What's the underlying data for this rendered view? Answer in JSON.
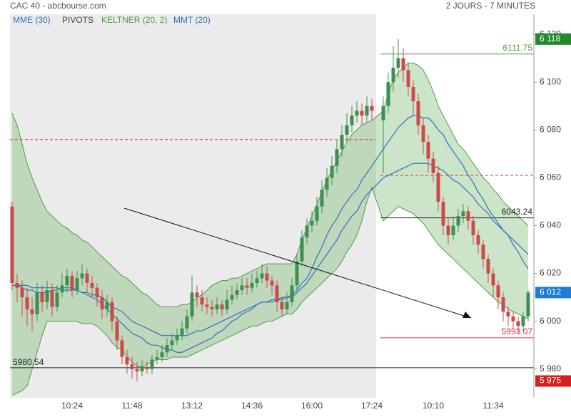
{
  "chart_data": {
    "type": "candlestick",
    "title": "CAC 40 - abcbourse.com",
    "subtitle": "2 JOURS - 7 MINUTES",
    "categories": [
      null,
      null,
      null,
      null,
      null,
      null,
      null,
      null,
      null,
      null,
      null,
      null,
      "10:24",
      null,
      null,
      null,
      null,
      null,
      null,
      null,
      null,
      null,
      null,
      null,
      "11:48",
      null,
      null,
      null,
      null,
      null,
      null,
      null,
      null,
      null,
      null,
      null,
      "13:12",
      null,
      null,
      null,
      null,
      null,
      null,
      null,
      null,
      null,
      null,
      null,
      "14:36",
      null,
      null,
      null,
      null,
      null,
      null,
      null,
      null,
      null,
      null,
      null,
      "16:00",
      null,
      null,
      null,
      null,
      null,
      null,
      null,
      null,
      null,
      null,
      null,
      "17:24",
      null,
      null,
      null,
      null,
      null,
      null,
      null,
      null,
      null,
      null,
      "10:10",
      null,
      null,
      null,
      null,
      null,
      null,
      null,
      null,
      null,
      null,
      null,
      "11:34",
      null,
      null,
      null,
      null,
      null,
      null,
      null
    ],
    "open": [
      6048,
      6016,
      6014,
      6010,
      6005,
      6003,
      6012,
      6008,
      6013,
      6006,
      6012,
      6015,
      6019,
      6013,
      6018,
      6020,
      6016,
      6014,
      6010,
      6005,
      6008,
      6000,
      5992,
      5985,
      5982,
      5980,
      5979,
      5981,
      5980,
      5984,
      5985,
      5987,
      5990,
      5992,
      5994,
      5997,
      6002,
      6012,
      6010,
      6007,
      6006,
      6005,
      6007,
      6005,
      6009,
      6011,
      6013,
      6015,
      6014,
      6016,
      6018,
      6020,
      6017,
      6015,
      6008,
      6005,
      6008,
      6015,
      6025,
      6035,
      6040,
      6042,
      6048,
      6055,
      6060,
      6065,
      6072,
      6078,
      6082,
      6086,
      6088,
      6086,
      6090,
      6084,
      6090,
      6100,
      6106,
      6110,
      6105,
      6098,
      6092,
      6082,
      6075,
      6068,
      6062,
      6050,
      6040,
      6036,
      6040,
      6044,
      6046,
      6042,
      6036,
      6032,
      6026,
      6020,
      6015,
      6010,
      6004,
      6002,
      6000,
      5998,
      6002
    ],
    "high": [
      6050,
      6020,
      6017,
      6014,
      6010,
      6016,
      6015,
      6017,
      6016,
      6015,
      6020,
      6022,
      6021,
      6021,
      6024,
      6022,
      6019,
      6016,
      6013,
      6011,
      6010,
      6002,
      5994,
      5988,
      5985,
      5983,
      5984,
      5983,
      5986,
      5988,
      5990,
      5993,
      5995,
      5997,
      6000,
      6005,
      6019,
      6015,
      6013,
      6010,
      6009,
      6010,
      6009,
      6013,
      6015,
      6016,
      6018,
      6018,
      6020,
      6021,
      6024,
      6023,
      6019,
      6017,
      6010,
      6012,
      6018,
      6028,
      6038,
      6043,
      6046,
      6052,
      6059,
      6064,
      6069,
      6076,
      6082,
      6087,
      6090,
      6092,
      6091,
      6094,
      6093,
      6094,
      6104,
      6115,
      6118,
      6114,
      6108,
      6101,
      6095,
      6085,
      6078,
      6071,
      6065,
      6052,
      6043,
      6044,
      6047,
      6049,
      6048,
      6044,
      6038,
      6034,
      6028,
      6022,
      6017,
      6012,
      6006,
      6004,
      6002,
      6004,
      6013
    ],
    "low": [
      6013,
      6008,
      6002,
      5998,
      5996,
      6000,
      6004,
      6005,
      6002,
      6004,
      6010,
      6012,
      6010,
      6011,
      6015,
      6012,
      6010,
      6006,
      6001,
      6002,
      5996,
      5988,
      5982,
      5978,
      5976,
      5975,
      5977,
      5978,
      5978,
      5982,
      5983,
      5985,
      5988,
      5990,
      5992,
      5995,
      6000,
      6006,
      6004,
      6003,
      6002,
      6003,
      6002,
      6003,
      6007,
      6009,
      6011,
      6011,
      6012,
      6014,
      6016,
      6014,
      6011,
      6004,
      6002,
      6003,
      6006,
      6013,
      6023,
      6032,
      6037,
      6040,
      6045,
      6052,
      6057,
      6062,
      6069,
      6075,
      6079,
      6083,
      6082,
      6083,
      6084,
      6062,
      6087,
      6096,
      6102,
      6100,
      6094,
      6086,
      6078,
      6070,
      6062,
      6058,
      6046,
      6036,
      6032,
      6034,
      6037,
      6041,
      6038,
      6032,
      6028,
      6022,
      6016,
      6010,
      6005,
      6000,
      5998,
      5997,
      5995,
      5996,
      6000
    ],
    "close": [
      6016,
      6014,
      6010,
      6005,
      6003,
      6012,
      6008,
      6013,
      6006,
      6012,
      6015,
      6019,
      6013,
      6018,
      6020,
      6016,
      6014,
      6010,
      6005,
      6008,
      6000,
      5992,
      5985,
      5982,
      5980,
      5979,
      5981,
      5980,
      5984,
      5985,
      5987,
      5990,
      5992,
      5994,
      5997,
      6002,
      6012,
      6010,
      6007,
      6006,
      6005,
      6007,
      6005,
      6009,
      6011,
      6013,
      6015,
      6014,
      6016,
      6018,
      6020,
      6017,
      6015,
      6008,
      6005,
      6008,
      6015,
      6025,
      6035,
      6040,
      6042,
      6048,
      6055,
      6060,
      6065,
      6072,
      6078,
      6082,
      6086,
      6088,
      6086,
      6090,
      6088,
      6090,
      6100,
      6106,
      6110,
      6105,
      6098,
      6092,
      6082,
      6075,
      6068,
      6062,
      6050,
      6040,
      6036,
      6040,
      6044,
      6046,
      6042,
      6036,
      6032,
      6026,
      6020,
      6015,
      6010,
      6004,
      6002,
      6000,
      5998,
      6002,
      6012
    ],
    "up_color": "#3f8f52",
    "down_color": "#cc4a4a",
    "keltner": {
      "name": "KELTNER (20, 2)",
      "color": "#4e9a45",
      "fill": "rgba(110,180,100,0.35)",
      "upper": [
        6087,
        6082,
        6074,
        6066,
        6060,
        6055,
        6050,
        6046,
        6044,
        6042,
        6040,
        6039,
        6037,
        6036,
        6034,
        6033,
        6031,
        6029,
        6027,
        6025,
        6023,
        6021,
        6019,
        6018,
        6016,
        6014,
        6012,
        6011,
        6009,
        6007,
        6006,
        6006,
        6006,
        6006,
        6007,
        6007,
        6008,
        6010,
        6011,
        6013,
        6015,
        6016,
        6017,
        6017,
        6018,
        6018,
        6019,
        6020,
        6021,
        6022,
        6023,
        6024,
        6024,
        6024,
        6024,
        6024,
        6024,
        6028,
        6034,
        6039,
        6044,
        6049,
        6054,
        6059,
        6063,
        6067,
        6071,
        6075,
        6078,
        6080,
        6082,
        6083,
        6084,
        6088,
        6095,
        6101,
        6104,
        6106,
        6108,
        6108,
        6107,
        6105,
        6101,
        6096,
        6090,
        6086,
        6082,
        6078,
        6074,
        6072,
        6069,
        6066,
        6063,
        6060,
        6058,
        6055,
        6053,
        6050,
        6048,
        6046,
        6044,
        6042,
        6040
      ],
      "lower": [
        5969,
        5970,
        5971,
        5973,
        5980,
        5987,
        5994,
        6000,
        6000,
        6000,
        6000,
        6000,
        6000,
        6000,
        5999,
        5999,
        5999,
        5998,
        5996,
        5994,
        5991,
        5989,
        5988,
        5985,
        5983,
        5981,
        5981,
        5982,
        5983,
        5984,
        5984,
        5984,
        5985,
        5985,
        5985,
        5985,
        5986,
        5987,
        5988,
        5989,
        5990,
        5991,
        5992,
        5993,
        5994,
        5995,
        5996,
        5997,
        5998,
        5998,
        5999,
        6000,
        6000,
        6001,
        6002,
        6003,
        6003,
        6005,
        6008,
        6010,
        6012,
        6014,
        6016,
        6018,
        6020,
        6022,
        6025,
        6029,
        6032,
        6036,
        6042,
        6050,
        6056,
        6042,
        6044,
        6046,
        6048,
        6047,
        6046,
        6045,
        6043,
        6041,
        6038,
        6035,
        6032,
        6030,
        6028,
        6026,
        6024,
        6022,
        6020,
        6018,
        6016,
        6014,
        6012,
        6010,
        6008,
        6007,
        6005,
        6004,
        6003,
        6002,
        6001
      ]
    },
    "series": [
      {
        "name": "MME (30)",
        "color": "#2f6fc0",
        "values": [
          6015,
          6015,
          6015,
          6015,
          6014,
          6014,
          6014,
          6014,
          6014,
          6014,
          6013,
          6013,
          6013,
          6013,
          6012,
          6012,
          6011,
          6011,
          6010,
          6008,
          6006,
          6005,
          6004,
          6002,
          6000,
          5999,
          5998,
          5997,
          5996,
          5995,
          5994,
          5994,
          5994,
          5994,
          5994,
          5994,
          5995,
          5996,
          5996,
          5997,
          5998,
          5999,
          6000,
          6001,
          6002,
          6003,
          6004,
          6005,
          6006,
          6007,
          6008,
          6008,
          6008,
          6009,
          6009,
          6010,
          6010,
          6012,
          6014,
          6016,
          6019,
          6022,
          6025,
          6028,
          6031,
          6034,
          6038,
          6041,
          6044,
          6046,
          6050,
          6053,
          6055,
          6060,
          6061,
          6062,
          6063,
          6064,
          6065,
          6066,
          6066,
          6066,
          6066,
          6065,
          6064,
          6063,
          6061,
          6059,
          6058,
          6056,
          6054,
          6052,
          6049,
          6047,
          6045,
          6042,
          6040,
          6038,
          6036,
          6034,
          6032,
          6030,
          6028
        ]
      },
      {
        "name": "MMT (20)",
        "color": "#2f6fc0",
        "values": [
          6015,
          6015,
          6014,
          6013,
          6013,
          6012,
          6012,
          6012,
          6013,
          6013,
          6014,
          6014,
          6014,
          6013,
          6012,
          6011,
          6010,
          6009,
          6007,
          6005,
          6003,
          6001,
          5999,
          5997,
          5995,
          5994,
          5993,
          5991,
          5990,
          5990,
          5989,
          5988,
          5988,
          5987,
          5987,
          5988,
          5989,
          5990,
          5991,
          5992,
          5993,
          5995,
          5996,
          5998,
          6000,
          6001,
          6003,
          6004,
          6005,
          6007,
          6008,
          6008,
          6009,
          6009,
          6010,
          6010,
          6011,
          6013,
          6016,
          6018,
          6022,
          6027,
          6031,
          6036,
          6040,
          6043,
          6047,
          6050,
          6053,
          6055,
          6059,
          6062,
          6065,
          6072,
          6075,
          6078,
          6081,
          6083,
          6085,
          6086,
          6086,
          6085,
          6085,
          6083,
          6080,
          6078,
          6074,
          6071,
          6068,
          6065,
          6061,
          6058,
          6054,
          6051,
          6047,
          6044,
          6041,
          6038,
          6036,
          6032,
          6029,
          6025,
          6022
        ]
      }
    ],
    "pivots": {
      "name": "PIVOTS",
      "levels": [
        {
          "value": 6111.75,
          "label": "6111.75",
          "color": "#5a9a48",
          "session": 2
        },
        {
          "value": 6043.24,
          "label": "6043.24",
          "color": "#222222",
          "session": 2
        },
        {
          "value": 5993.07,
          "label": "5993.07",
          "color": "#d93340",
          "session": 2
        },
        {
          "value": 5980.54,
          "label": "5980.54",
          "color": "#222222",
          "session": 0
        },
        {
          "value": 6076,
          "color": "#d93340",
          "session": 1,
          "dashed": true
        },
        {
          "value": 6061,
          "color": "#d93340",
          "session": 2,
          "dashed": true
        }
      ]
    },
    "price_badges": [
      {
        "value": 6118,
        "label": "6 118",
        "color": "#23892f"
      },
      {
        "value": 6012,
        "label": "6 012",
        "color": "#1f7bd3"
      },
      {
        "value": 5975,
        "label": "5 975",
        "color": "#d81f1f"
      }
    ],
    "ylim": [
      5968,
      6126
    ],
    "yticks": [
      {
        "value": 6120,
        "label": "6 120"
      },
      {
        "value": 6100,
        "label": "6 100"
      },
      {
        "value": 6080,
        "label": "6 080"
      },
      {
        "value": 6060,
        "label": "6 060"
      },
      {
        "value": 6040,
        "label": "6 040"
      },
      {
        "value": 6020,
        "label": "6 020"
      },
      {
        "value": 6000,
        "label": "6 000"
      },
      {
        "value": 5980,
        "label": "5 980"
      }
    ]
  }
}
